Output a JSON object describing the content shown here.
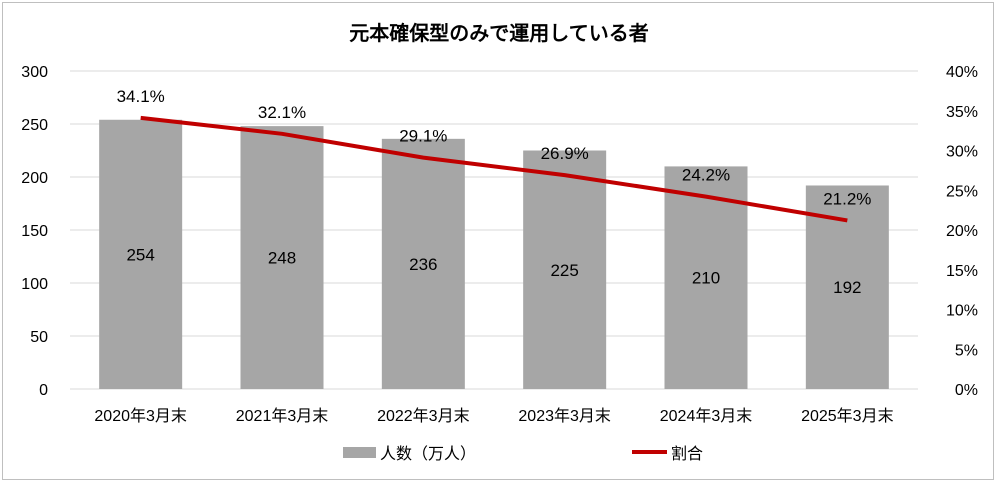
{
  "chart_data": {
    "type": "bar",
    "title": "元本確保型のみで運用している者",
    "categories": [
      "2020年3月末",
      "2021年3月末",
      "2022年3月末",
      "2023年3月末",
      "2024年3月末",
      "2025年3月末"
    ],
    "series": [
      {
        "name": "人数（万人）",
        "type": "bar",
        "axis": "left",
        "color": "#a6a6a6",
        "values": [
          254,
          248,
          236,
          225,
          210,
          192
        ]
      },
      {
        "name": "割合",
        "type": "line",
        "axis": "right",
        "color": "#c00000",
        "values": [
          34.1,
          32.1,
          29.1,
          26.9,
          24.2,
          21.2
        ],
        "labels": [
          "34.1%",
          "32.1%",
          "29.1%",
          "26.9%",
          "24.2%",
          "21.2%"
        ]
      }
    ],
    "y_left": {
      "min": 0,
      "max": 300,
      "ticks": [
        "0",
        "50",
        "100",
        "150",
        "200",
        "250",
        "300"
      ]
    },
    "y_right": {
      "min": 0,
      "max": 40,
      "ticks": [
        "0%",
        "5%",
        "10%",
        "15%",
        "20%",
        "25%",
        "30%",
        "35%",
        "40%"
      ]
    },
    "grid": true,
    "legend_position": "bottom"
  }
}
